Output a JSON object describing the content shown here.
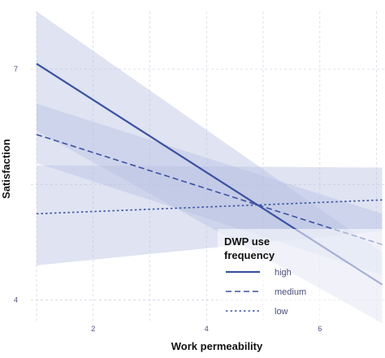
{
  "chart_data": {
    "type": "line",
    "xlabel": "Work permeability",
    "ylabel": "Satisfaction",
    "xlim": [
      0.9,
      7.15
    ],
    "ylim": [
      3.7,
      7.75
    ],
    "x_ticks": [
      2,
      4,
      6
    ],
    "y_ticks": [
      4,
      7
    ],
    "grid": true,
    "legend": {
      "title": "DWP use frequency",
      "position": "bottom-right"
    },
    "colors": {
      "line": "#3b52a0",
      "band": "#b8c1e2",
      "band_opacity": 0.45
    },
    "series": [
      {
        "name": "high",
        "dash": "solid",
        "x": [
          1,
          7.1
        ],
        "y": [
          7.07,
          4.2
        ],
        "ci_lower": [
          6.2,
          3.7
        ],
        "ci_upper": [
          7.75,
          4.62
        ]
      },
      {
        "name": "medium",
        "dash": "dashed",
        "x": [
          1,
          7.1
        ],
        "y": [
          6.15,
          4.72
        ],
        "ci_lower": [
          5.78,
          4.32
        ],
        "ci_upper": [
          6.55,
          5.12
        ]
      },
      {
        "name": "low",
        "dash": "dotted",
        "x": [
          1,
          7.1
        ],
        "y": [
          5.12,
          5.3
        ],
        "ci_lower": [
          4.45,
          4.9
        ],
        "ci_upper": [
          5.75,
          5.72
        ]
      }
    ]
  }
}
